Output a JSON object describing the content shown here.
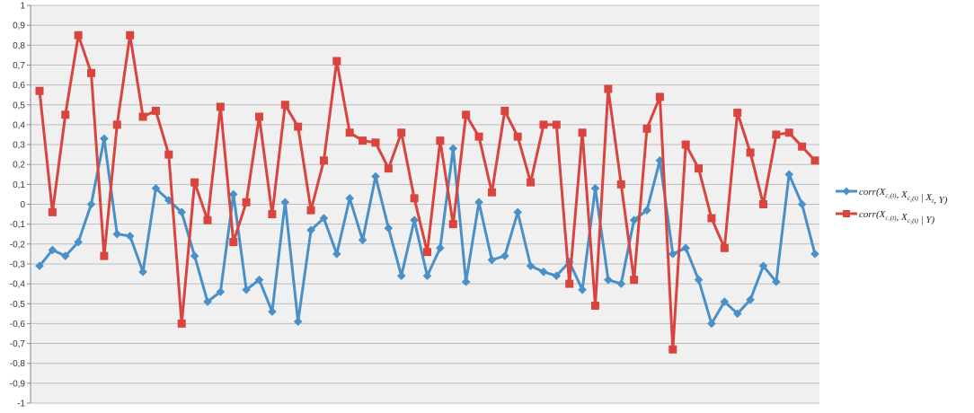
{
  "chart_data": {
    "type": "line",
    "title": "",
    "xlabel": "",
    "ylabel": "",
    "ylim": [
      -1,
      1
    ],
    "y_ticks": [
      "1",
      "0,9",
      "0,8",
      "0,7",
      "0,6",
      "0,5",
      "0,4",
      "0,3",
      "0,2",
      "0,1",
      "0",
      "-0,1",
      "-0,2",
      "-0,3",
      "-0,4",
      "-0,5",
      "-0,6",
      "-0,7",
      "-0,8",
      "-0,9",
      "-1"
    ],
    "grid": true,
    "legend_position": "right",
    "series": [
      {
        "name": "corr(X_{c1(t)}, X_{c2(t)} | X_t, Y)",
        "color": "#4a90c8",
        "marker": "diamond",
        "values": [
          -0.31,
          -0.23,
          -0.26,
          -0.19,
          0.0,
          0.33,
          -0.15,
          -0.16,
          -0.34,
          0.08,
          0.02,
          -0.04,
          -0.26,
          -0.49,
          -0.44,
          0.05,
          -0.43,
          -0.38,
          -0.54,
          0.01,
          -0.59,
          -0.13,
          -0.07,
          -0.25,
          0.03,
          -0.18,
          0.14,
          -0.12,
          -0.36,
          -0.08,
          -0.36,
          -0.22,
          0.28,
          -0.39,
          0.01,
          -0.28,
          -0.26,
          -0.04,
          -0.31,
          -0.34,
          -0.36,
          -0.29,
          -0.43,
          0.08,
          -0.38,
          -0.4,
          -0.08,
          -0.03,
          0.22,
          -0.25,
          -0.22,
          -0.38,
          -0.6,
          -0.49,
          -0.55,
          -0.48,
          -0.31,
          -0.39,
          0.15,
          0.0,
          -0.25
        ]
      },
      {
        "name": "corr(X_{c1(t)}, X_{c2(t)} | Y)",
        "color": "#d9443e",
        "marker": "square",
        "values": [
          0.57,
          -0.04,
          0.45,
          0.85,
          0.66,
          -0.26,
          0.4,
          0.85,
          0.44,
          0.47,
          0.25,
          -0.6,
          0.11,
          -0.08,
          0.49,
          -0.19,
          0.01,
          0.44,
          -0.05,
          0.5,
          0.39,
          -0.03,
          0.22,
          0.72,
          0.36,
          0.32,
          0.31,
          0.18,
          0.36,
          0.03,
          -0.24,
          0.32,
          -0.1,
          0.45,
          0.34,
          0.06,
          0.47,
          0.34,
          0.11,
          0.4,
          0.4,
          -0.4,
          0.36,
          -0.51,
          0.58,
          0.1,
          -0.38,
          0.38,
          0.54,
          -0.73,
          0.3,
          0.18,
          -0.07,
          -0.22,
          0.46,
          0.26,
          0.0,
          0.35,
          0.36,
          0.29,
          0.22
        ]
      }
    ]
  },
  "legend": {
    "items": [
      {
        "prefix": "corr(X",
        "s1": "c₁(t)",
        "mid": ", X",
        "s2": "c₂(t)",
        "cond": " | X",
        "s3": "t",
        "tail": ", Y)"
      },
      {
        "prefix": "corr(X",
        "s1": "c₁(t)",
        "mid": ", X",
        "s2": "c₂(t)",
        "cond": " | Y)",
        "s3": "",
        "tail": ""
      }
    ]
  }
}
